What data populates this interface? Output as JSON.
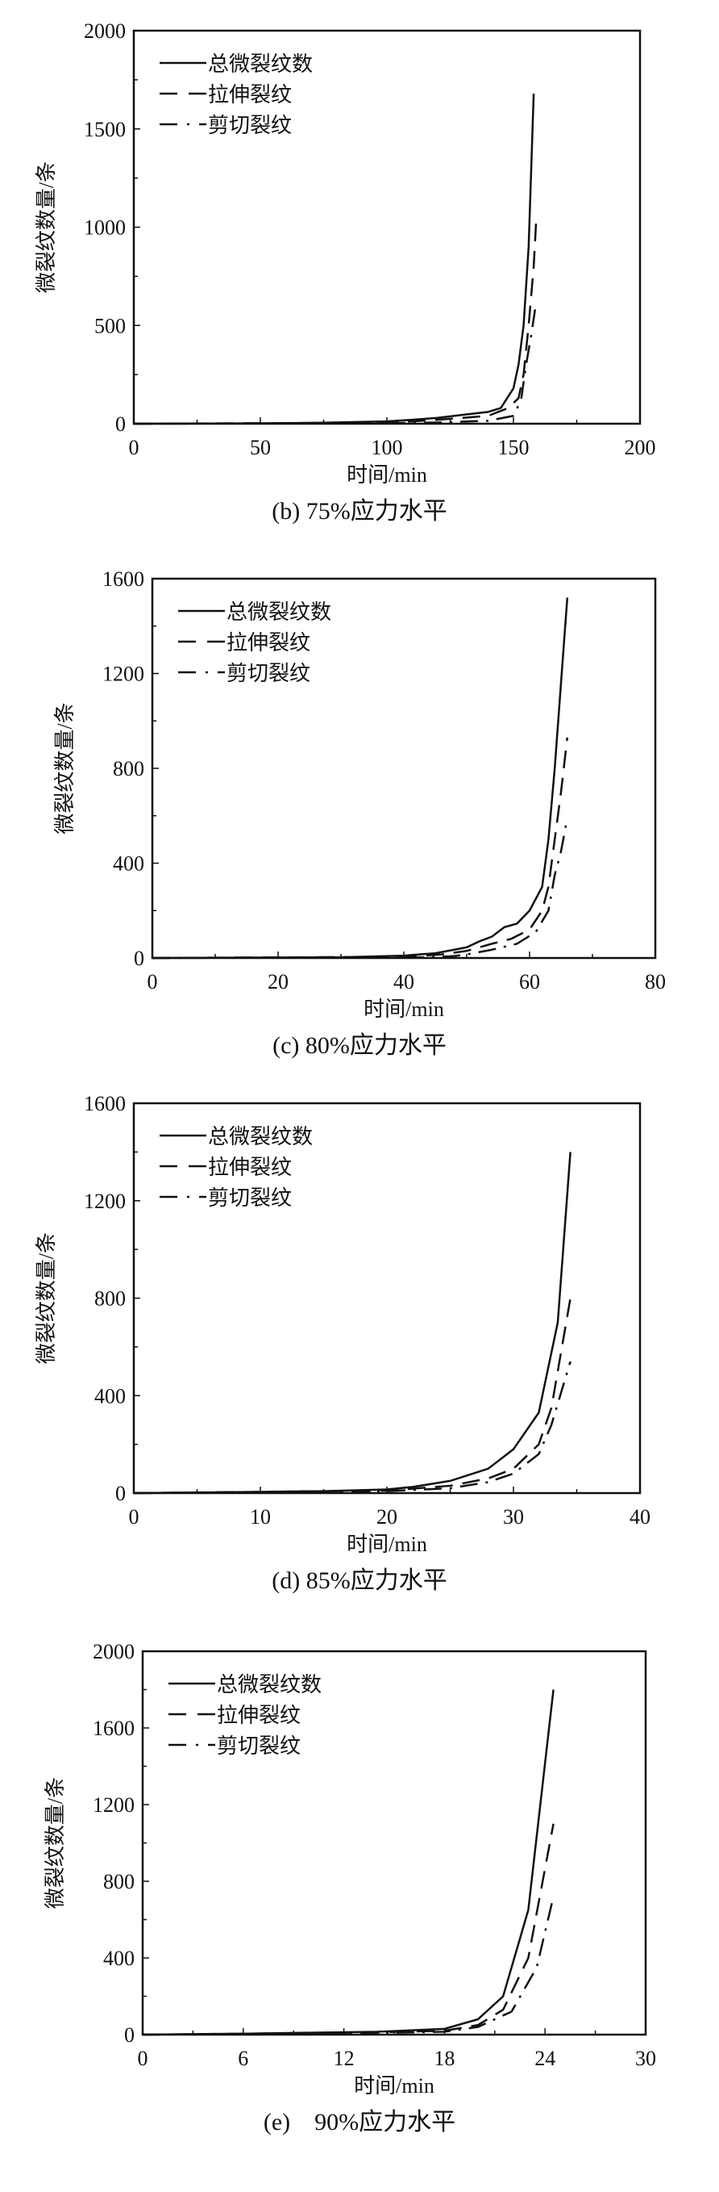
{
  "chart_data": [
    {
      "type": "line",
      "caption": "(b) 75%应力水平",
      "xlabel": "时间/min",
      "ylabel": "微裂纹数量/条",
      "xlim": [
        0,
        200
      ],
      "ylim": [
        0,
        2000
      ],
      "xticks": [
        "0",
        "50",
        "100",
        "150",
        "200"
      ],
      "yticks": [
        "0",
        "500",
        "1000",
        "1500",
        "2000"
      ],
      "legend_position": "top-left",
      "series": [
        {
          "name": "总微裂纹数",
          "style": "solid",
          "x": [
            0,
            50,
            75,
            100,
            110,
            120,
            130,
            140,
            145,
            150,
            152,
            154,
            156,
            158
          ],
          "y": [
            0,
            2,
            5,
            12,
            20,
            30,
            45,
            60,
            80,
            180,
            300,
            500,
            900,
            1680
          ]
        },
        {
          "name": "拉伸裂纹",
          "style": "dashed",
          "x": [
            0,
            100,
            110,
            120,
            130,
            140,
            148,
            152,
            154,
            156,
            158,
            159
          ],
          "y": [
            0,
            5,
            12,
            20,
            30,
            40,
            80,
            130,
            250,
            500,
            800,
            1040
          ]
        },
        {
          "name": "剪切裂纹",
          "style": "dashdot",
          "x": [
            0,
            100,
            120,
            140,
            150,
            153,
            155,
            157,
            159
          ],
          "y": [
            0,
            3,
            6,
            15,
            40,
            120,
            300,
            450,
            620
          ]
        }
      ]
    },
    {
      "type": "line",
      "caption": "(c) 80%应力水平",
      "xlabel": "时间/min",
      "ylabel": "微裂纹数量/条",
      "xlim": [
        0,
        80
      ],
      "ylim": [
        0,
        1600
      ],
      "xticks": [
        "0",
        "20",
        "40",
        "60",
        "80"
      ],
      "yticks": [
        "0",
        "400",
        "800",
        "1200",
        "1600"
      ],
      "legend_position": "top-left",
      "series": [
        {
          "name": "总微裂纹数",
          "style": "solid",
          "x": [
            0,
            30,
            40,
            45,
            48,
            50,
            52,
            54,
            56,
            58,
            60,
            62,
            63,
            64,
            66
          ],
          "y": [
            0,
            3,
            10,
            20,
            35,
            45,
            70,
            90,
            130,
            145,
            200,
            300,
            500,
            800,
            1520
          ]
        },
        {
          "name": "拉伸裂纹",
          "style": "dashed",
          "x": [
            0,
            40,
            46,
            50,
            54,
            57,
            60,
            62,
            63,
            64,
            65,
            66
          ],
          "y": [
            0,
            5,
            15,
            30,
            60,
            80,
            120,
            200,
            300,
            500,
            700,
            930
          ]
        },
        {
          "name": "剪切裂纹",
          "style": "dashdot",
          "x": [
            0,
            44,
            48,
            50,
            54,
            58,
            61,
            63,
            64,
            65,
            66
          ],
          "y": [
            0,
            3,
            8,
            15,
            35,
            60,
            110,
            200,
            350,
            450,
            590
          ]
        }
      ]
    },
    {
      "type": "line",
      "caption": "(d) 85%应力水平",
      "xlabel": "时间/min",
      "ylabel": "微裂纹数量/条",
      "xlim": [
        0,
        40
      ],
      "ylim": [
        0,
        1600
      ],
      "xticks": [
        "0",
        "10",
        "20",
        "30",
        "40"
      ],
      "yticks": [
        "0",
        "400",
        "800",
        "1200",
        "1600"
      ],
      "legend_position": "top-left",
      "series": [
        {
          "name": "总微裂纹数",
          "style": "solid",
          "x": [
            0,
            5,
            10,
            15,
            20,
            22,
            25,
            28,
            30,
            32,
            33.5,
            34.5
          ],
          "y": [
            0,
            2,
            5,
            8,
            15,
            25,
            50,
            100,
            180,
            330,
            700,
            1400
          ]
        },
        {
          "name": "拉伸裂纹",
          "style": "dashed",
          "x": [
            0,
            20,
            25,
            28,
            30,
            32,
            33,
            34.5
          ],
          "y": [
            0,
            10,
            30,
            60,
            100,
            200,
            350,
            800
          ]
        },
        {
          "name": "剪切裂纹",
          "style": "dashdot",
          "x": [
            0,
            20,
            25,
            28,
            30,
            32,
            33,
            34.5
          ],
          "y": [
            0,
            8,
            20,
            45,
            80,
            160,
            280,
            540
          ]
        }
      ]
    },
    {
      "type": "line",
      "caption": "(e)    90%应力水平",
      "xlabel": "时间/min",
      "ylabel": "微裂纹数量/条",
      "xlim": [
        0,
        30
      ],
      "ylim": [
        0,
        2000
      ],
      "xticks": [
        "0",
        "6",
        "12",
        "18",
        "24",
        "30"
      ],
      "yticks": [
        "0",
        "400",
        "800",
        "1200",
        "1600",
        "2000"
      ],
      "legend_position": "top-left",
      "series": [
        {
          "name": "总微裂纹数",
          "style": "solid",
          "x": [
            0,
            6,
            10,
            14,
            18,
            20,
            21.5,
            23,
            24.5
          ],
          "y": [
            0,
            5,
            10,
            15,
            30,
            80,
            200,
            650,
            1800
          ]
        },
        {
          "name": "拉伸裂纹",
          "style": "dashed",
          "x": [
            0,
            10,
            14,
            18,
            20,
            21.5,
            23,
            24.5
          ],
          "y": [
            0,
            8,
            12,
            20,
            50,
            130,
            400,
            1100
          ]
        },
        {
          "name": "剪切裂纹",
          "style": "dashdot",
          "x": [
            0,
            12,
            18,
            20,
            22,
            23.5,
            24.5
          ],
          "y": [
            0,
            6,
            15,
            40,
            120,
            350,
            720
          ]
        }
      ]
    }
  ]
}
